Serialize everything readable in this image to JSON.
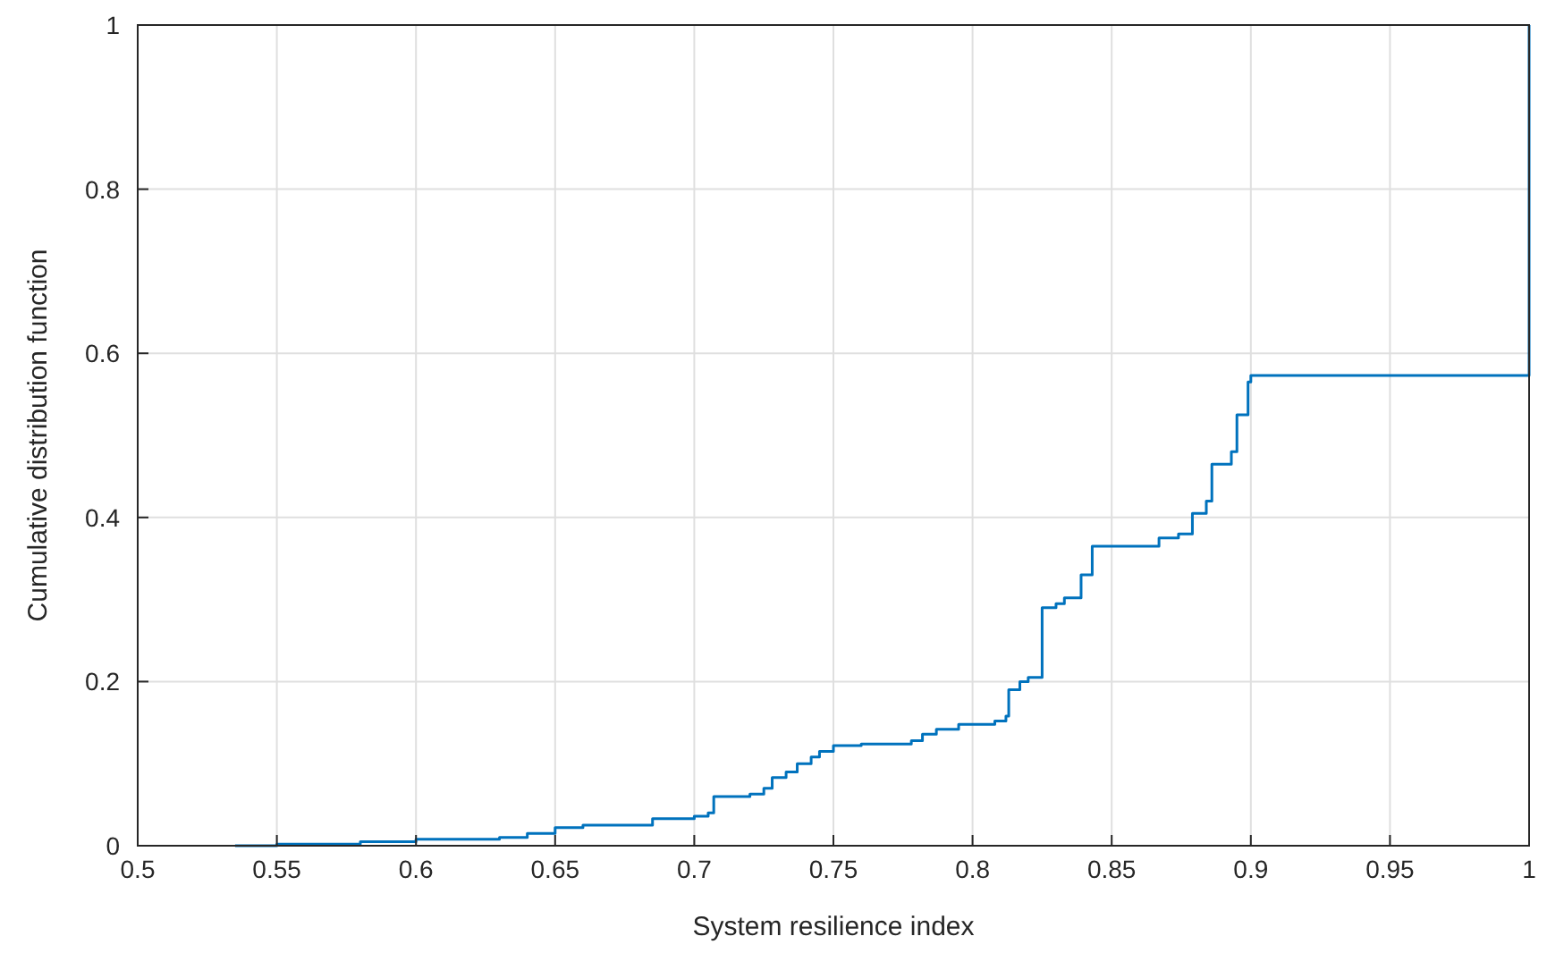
{
  "chart_data": {
    "type": "step",
    "xlabel": "System resilience index",
    "ylabel": "Cumulative distribution function",
    "xlim": [
      0.5,
      1
    ],
    "xticks": [
      0.5,
      0.55,
      0.6,
      0.65,
      0.7,
      0.75,
      0.8,
      0.85,
      0.9,
      0.95,
      1
    ],
    "ylim": [
      0,
      1
    ],
    "yticks": [
      0,
      0.2,
      0.4,
      0.6,
      0.8,
      1
    ],
    "grid": true,
    "series": [
      {
        "color": "#0072bd",
        "x": [
          0.535,
          0.55,
          0.58,
          0.6,
          0.63,
          0.64,
          0.65,
          0.66,
          0.685,
          0.7,
          0.705,
          0.707,
          0.72,
          0.725,
          0.728,
          0.733,
          0.737,
          0.742,
          0.745,
          0.75,
          0.76,
          0.778,
          0.782,
          0.787,
          0.795,
          0.808,
          0.812,
          0.813,
          0.817,
          0.82,
          0.825,
          0.83,
          0.833,
          0.839,
          0.843,
          0.867,
          0.874,
          0.879,
          0.884,
          0.886,
          0.893,
          0.895,
          0.899,
          0.9,
          1
        ],
        "values": [
          0,
          0.002,
          0.005,
          0.008,
          0.01,
          0.015,
          0.022,
          0.025,
          0.033,
          0.036,
          0.04,
          0.06,
          0.063,
          0.07,
          0.083,
          0.09,
          0.1,
          0.108,
          0.115,
          0.122,
          0.124,
          0.128,
          0.136,
          0.142,
          0.148,
          0.152,
          0.158,
          0.19,
          0.2,
          0.205,
          0.29,
          0.295,
          0.302,
          0.33,
          0.365,
          0.375,
          0.38,
          0.405,
          0.42,
          0.465,
          0.48,
          0.525,
          0.565,
          0.573,
          1
        ]
      }
    ]
  }
}
